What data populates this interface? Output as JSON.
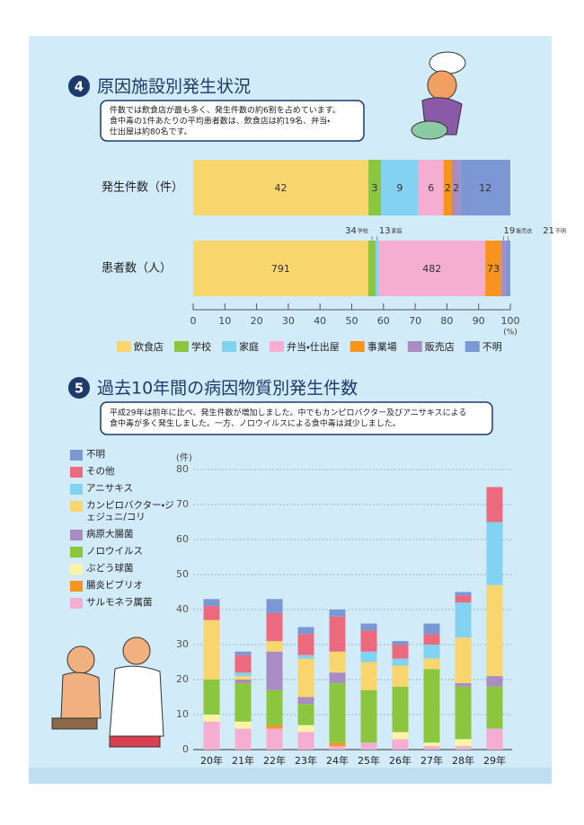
{
  "chart_data": [
    {
      "type": "hbar",
      "section": "4",
      "title": "原因施設別発生状況",
      "note": [
        "件数では飲食店が最も多く、発生件数の約6割を占めています。",
        "食中毒の1件あたりの平均患者数は、飲食店は約19名、弁当・",
        "仕出屋は約80名です。"
      ],
      "categories": [
        "発生件数（件）",
        "患者数（人）"
      ],
      "series": [
        {
          "name": "飲食店",
          "color": "#f8d66d",
          "values": [
            42,
            791
          ]
        },
        {
          "name": "学校",
          "color": "#8cc63f",
          "values": [
            3,
            34
          ]
        },
        {
          "name": "家庭",
          "color": "#84d2f1",
          "values": [
            9,
            13
          ]
        },
        {
          "name": "弁当・仕出屋",
          "color": "#f5aed1",
          "values": [
            6,
            482
          ]
        },
        {
          "name": "事業場",
          "color": "#f7941d",
          "values": [
            2,
            73
          ]
        },
        {
          "name": "販売店",
          "color": "#a98cc4",
          "values": [
            2,
            19
          ]
        },
        {
          "name": "不明",
          "color": "#7b97d4",
          "values": [
            12,
            21
          ]
        }
      ],
      "stacked": "percent",
      "xlim": [
        0,
        100
      ],
      "xticks": [
        0,
        10,
        20,
        30,
        40,
        50,
        60,
        70,
        80,
        90,
        100
      ],
      "xlabel": "(%)"
    },
    {
      "type": "bar",
      "section": "5",
      "title": "過去10年間の病因物質別発生件数",
      "note": [
        "平成29年は前年に比べ、発生件数が増加しました。中でもカンピロバクター及びアニサキスによる",
        "食中毒が多く発生しました。一方、ノロウイルスによる食中毒は減少しました。"
      ],
      "categories": [
        "20年",
        "21年",
        "22年",
        "23年",
        "24年",
        "25年",
        "26年",
        "27年",
        "28年",
        "29年"
      ],
      "series": [
        {
          "name": "サルモネラ属菌",
          "color": "#f5aed1",
          "values": [
            8,
            6,
            6,
            5,
            1,
            2,
            3,
            1,
            1,
            6
          ]
        },
        {
          "name": "腸炎ビブリオ",
          "color": "#f7941d",
          "values": [
            0,
            0,
            1,
            0,
            1,
            0,
            0,
            0,
            0,
            0
          ]
        },
        {
          "name": "ぶどう球菌",
          "color": "#fbf3a6",
          "values": [
            2,
            2,
            0,
            2,
            0,
            0,
            2,
            1,
            2,
            0
          ]
        },
        {
          "name": "ノロウイルス",
          "color": "#8cc63f",
          "values": [
            10,
            11,
            10,
            6,
            17,
            15,
            13,
            21,
            15,
            12
          ]
        },
        {
          "name": "病原大腸菌",
          "color": "#a98cc4",
          "values": [
            0,
            1,
            11,
            2,
            3,
            0,
            0,
            0,
            1,
            3
          ]
        },
        {
          "name": "カンピロバクター・ジェジュニ/コリ",
          "color": "#f8d66d",
          "values": [
            17,
            1,
            3,
            11,
            6,
            8,
            6,
            3,
            13,
            26
          ]
        },
        {
          "name": "アニサキス",
          "color": "#84d2f1",
          "values": [
            0,
            1,
            0,
            1,
            0,
            3,
            2,
            4,
            10,
            18
          ]
        },
        {
          "name": "その他",
          "color": "#ec6a7e",
          "values": [
            4,
            5,
            8,
            6,
            10,
            6,
            4,
            3,
            2,
            10
          ]
        },
        {
          "name": "不明",
          "color": "#7b97d4",
          "values": [
            2,
            1,
            4,
            2,
            2,
            2,
            1,
            3,
            1,
            0
          ]
        }
      ],
      "ylim": [
        0,
        80
      ],
      "yticks": [
        0,
        10,
        20,
        30,
        40,
        50,
        60,
        70,
        80
      ],
      "ylabel": "(件)",
      "grid": true
    }
  ]
}
